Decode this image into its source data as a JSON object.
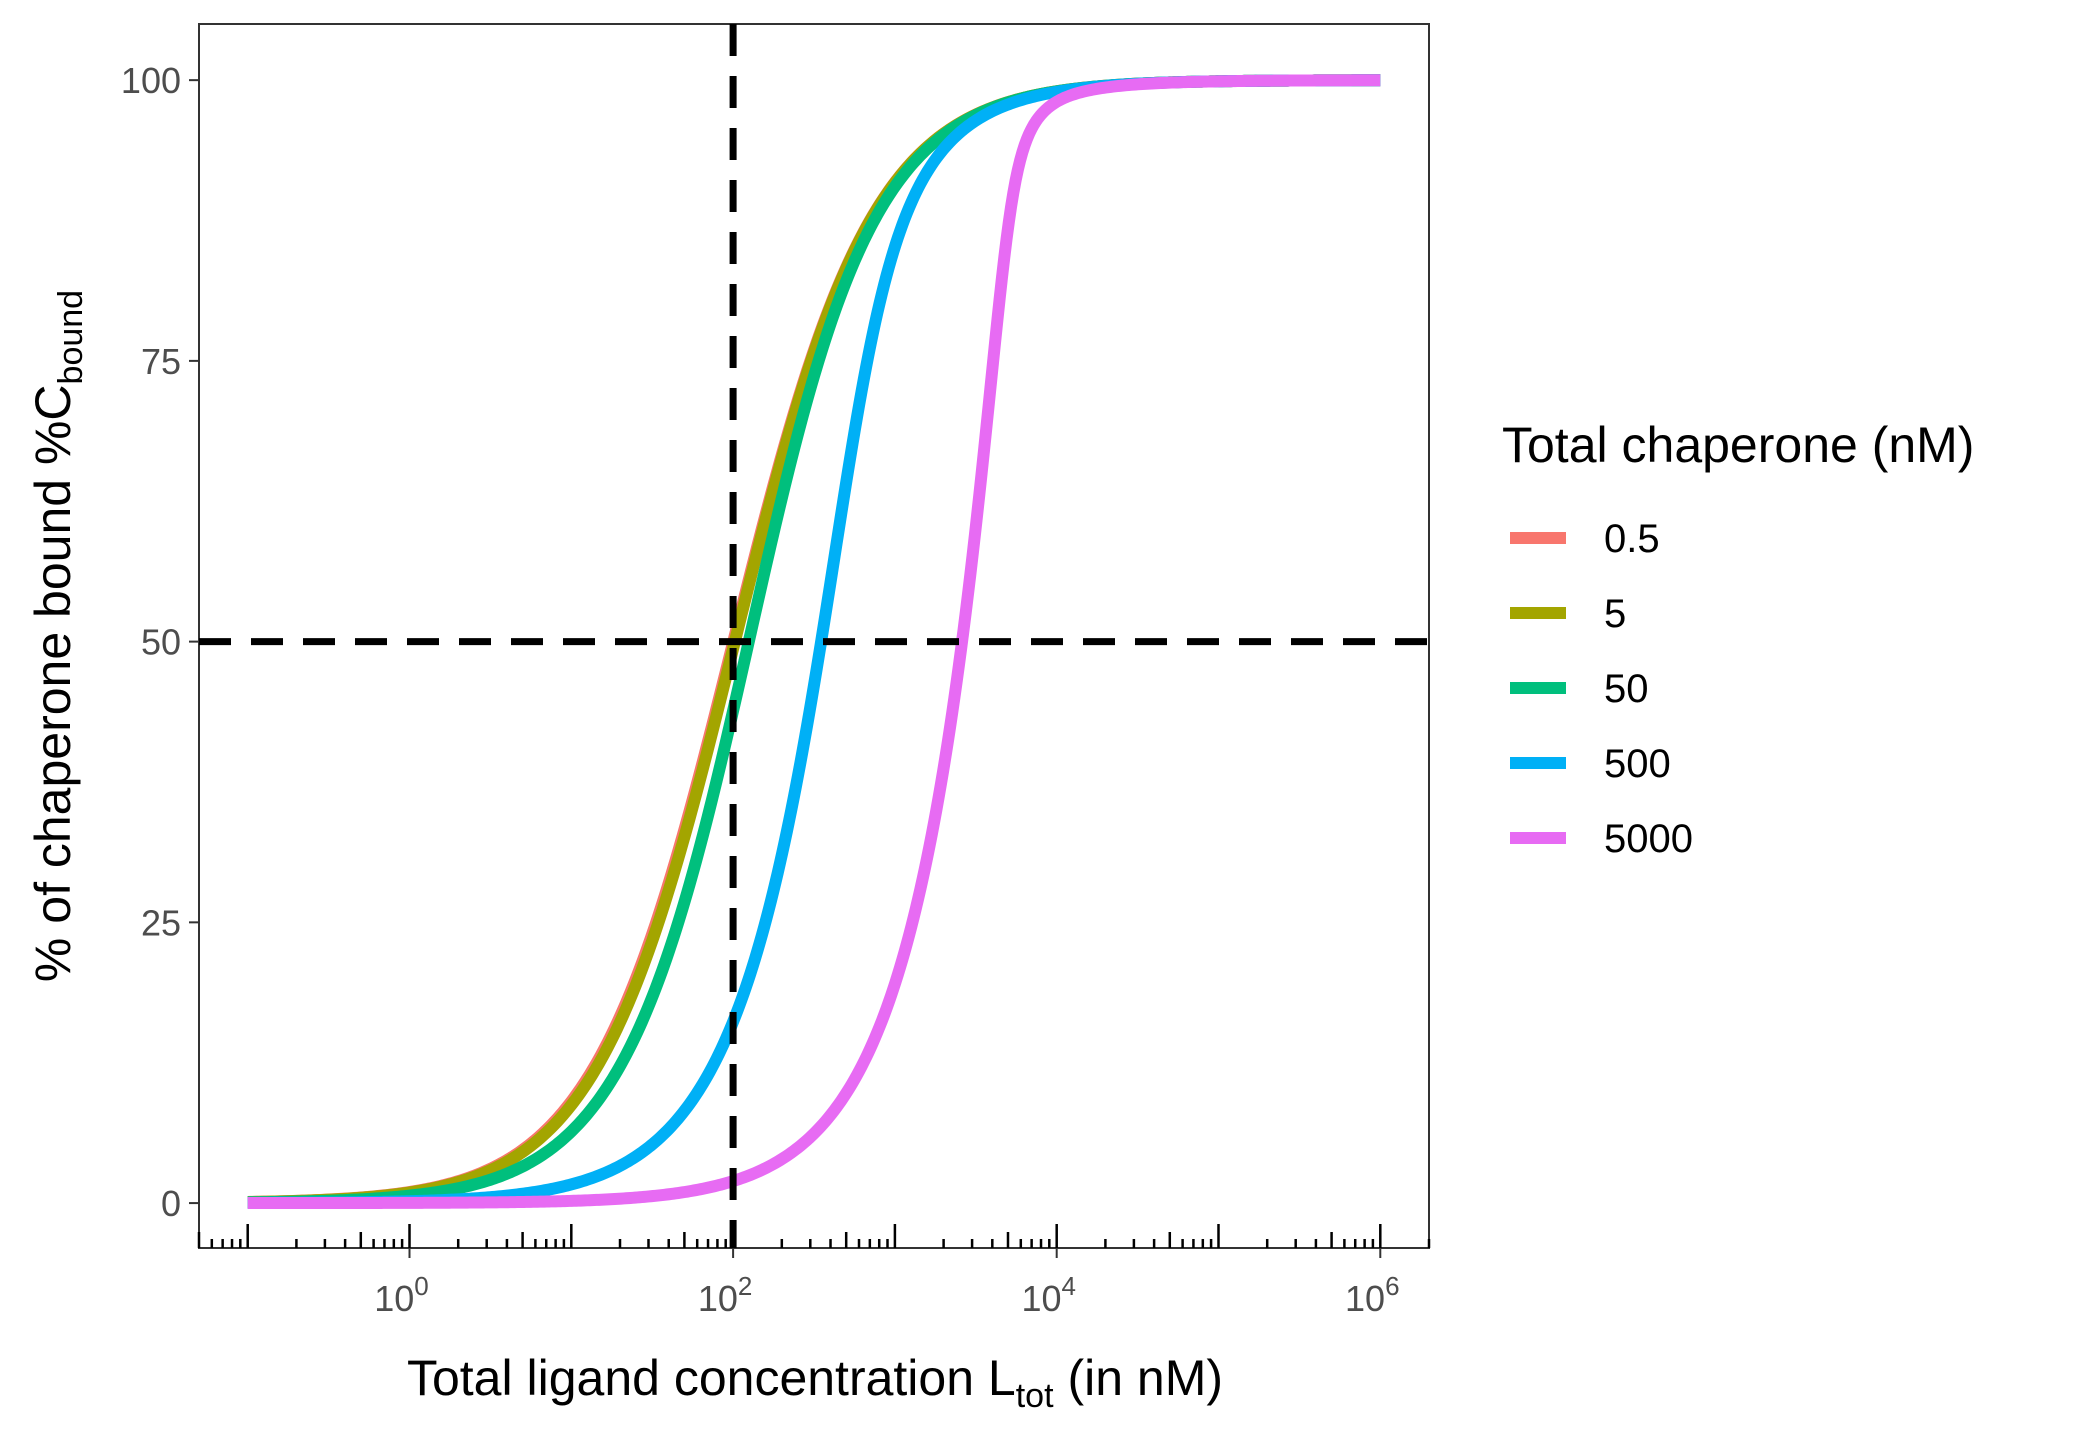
{
  "chart_data": {
    "type": "line",
    "title": "",
    "xlabel": {
      "main": "Total ligand concentration L",
      "sub": "tot",
      "suffix": " (in nM)"
    },
    "ylabel": {
      "main": "% of chaperone bound %C",
      "sub": "bound"
    },
    "x_scale": "log10",
    "xlim": [
      0.05,
      2000000
    ],
    "ylim": [
      -4,
      105
    ],
    "x_ticks": [
      {
        "value": 1,
        "base": "10",
        "exp": "0"
      },
      {
        "value": 100,
        "base": "10",
        "exp": "2"
      },
      {
        "value": 10000,
        "base": "10",
        "exp": "4"
      },
      {
        "value": 1000000,
        "base": "10",
        "exp": "6"
      }
    ],
    "y_ticks": [
      {
        "value": 0,
        "label": "0"
      },
      {
        "value": 25,
        "label": "25"
      },
      {
        "value": 50,
        "label": "50"
      },
      {
        "value": 75,
        "label": "75"
      },
      {
        "value": 100,
        "label": "100"
      }
    ],
    "model": {
      "Kd": 100,
      "x_min": 0.1,
      "x_max": 1000000
    },
    "reference_lines": [
      {
        "orientation": "vertical",
        "value": 100,
        "style": "dashed"
      },
      {
        "orientation": "horizontal",
        "value": 50,
        "style": "dashed"
      }
    ],
    "rug_ticks": true,
    "legend": {
      "title": "Total chaperone (nM)",
      "position": "right"
    },
    "series": [
      {
        "name": "0.5",
        "C_total": 0.5,
        "color": "#F8766D",
        "ec50": 100
      },
      {
        "name": "5",
        "C_total": 5,
        "color": "#A3A500",
        "ec50": 102
      },
      {
        "name": "50",
        "C_total": 50,
        "color": "#00BF7D",
        "ec50": 125
      },
      {
        "name": "500",
        "C_total": 500,
        "color": "#00B0F6",
        "ec50": 350
      },
      {
        "name": "5000",
        "C_total": 5000,
        "color": "#E76BF3",
        "ec50": 2600
      }
    ]
  }
}
